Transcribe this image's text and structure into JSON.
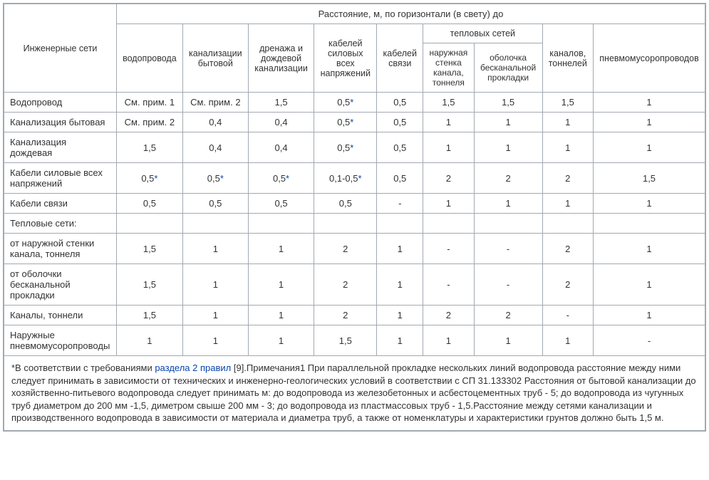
{
  "table": {
    "type": "table",
    "border_color": "#a2a9b1",
    "background_color": "#ffffff",
    "link_color": "#0645ad",
    "text_color": "#333333",
    "font_size": 13,
    "header": {
      "row_label_top": "Инженерные сети",
      "group_title": "Расстояние, м, по горизонтали (в свету) до",
      "cols": [
        "водопровода",
        "канализации бытовой",
        "дренажа и дождевой канализации",
        "кабелей силовых всех напряжений",
        "кабелей связи"
      ],
      "heat_group": "тепловых сетей",
      "heat_sub": [
        "наружная стенка канала, тоннеля",
        "оболочка бесканальной прокладки"
      ],
      "col_channels": "каналов, тоннелей",
      "col_pneumo": "пневмомусоропроводов"
    },
    "rows": [
      {
        "label": "Водопровод",
        "cells": [
          {
            "t": "См. прим. 1"
          },
          {
            "t": "См. прим. 2"
          },
          {
            "t": "1,5"
          },
          {
            "t": "0,5",
            "star": true
          },
          {
            "t": "0,5"
          },
          {
            "t": "1,5"
          },
          {
            "t": "1,5"
          },
          {
            "t": "1,5"
          },
          {
            "t": "1"
          }
        ]
      },
      {
        "label": "Канализация бытовая",
        "cells": [
          {
            "t": "См. прим. 2"
          },
          {
            "t": "0,4"
          },
          {
            "t": "0,4"
          },
          {
            "t": "0,5",
            "star": true
          },
          {
            "t": "0,5"
          },
          {
            "t": "1"
          },
          {
            "t": "1"
          },
          {
            "t": "1"
          },
          {
            "t": "1"
          }
        ]
      },
      {
        "label": "Канализация дождевая",
        "cells": [
          {
            "t": "1,5"
          },
          {
            "t": "0,4"
          },
          {
            "t": "0,4"
          },
          {
            "t": "0,5",
            "star": true
          },
          {
            "t": "0,5"
          },
          {
            "t": "1"
          },
          {
            "t": "1"
          },
          {
            "t": "1"
          },
          {
            "t": "1"
          }
        ]
      },
      {
        "label": "Кабели силовые всех напряжений",
        "cells": [
          {
            "t": "0,5",
            "star": true
          },
          {
            "t": "0,5",
            "star": true
          },
          {
            "t": "0,5",
            "star": true
          },
          {
            "t": "0,1-0,5",
            "star": true
          },
          {
            "t": "0,5"
          },
          {
            "t": "2"
          },
          {
            "t": "2"
          },
          {
            "t": "2"
          },
          {
            "t": "1,5"
          }
        ]
      },
      {
        "label": "Кабели связи",
        "cells": [
          {
            "t": "0,5"
          },
          {
            "t": "0,5"
          },
          {
            "t": "0,5"
          },
          {
            "t": "0,5"
          },
          {
            "t": "-"
          },
          {
            "t": "1"
          },
          {
            "t": "1"
          },
          {
            "t": "1"
          },
          {
            "t": "1"
          }
        ]
      },
      {
        "label": "Тепловые сети:",
        "cells": [
          {
            "t": ""
          },
          {
            "t": ""
          },
          {
            "t": ""
          },
          {
            "t": ""
          },
          {
            "t": ""
          },
          {
            "t": ""
          },
          {
            "t": ""
          },
          {
            "t": ""
          },
          {
            "t": ""
          }
        ]
      },
      {
        "label": "от наружной стенки канала, тоннеля",
        "cells": [
          {
            "t": "1,5"
          },
          {
            "t": "1"
          },
          {
            "t": "1"
          },
          {
            "t": "2"
          },
          {
            "t": "1"
          },
          {
            "t": "-"
          },
          {
            "t": "-"
          },
          {
            "t": "2"
          },
          {
            "t": "1"
          }
        ]
      },
      {
        "label": "от оболочки бесканальной прокладки",
        "cells": [
          {
            "t": "1,5"
          },
          {
            "t": "1"
          },
          {
            "t": "1"
          },
          {
            "t": "2"
          },
          {
            "t": "1"
          },
          {
            "t": "-"
          },
          {
            "t": "-"
          },
          {
            "t": "2"
          },
          {
            "t": "1"
          }
        ]
      },
      {
        "label": "Каналы, тоннели",
        "cells": [
          {
            "t": "1,5"
          },
          {
            "t": "1"
          },
          {
            "t": "1"
          },
          {
            "t": "2"
          },
          {
            "t": "1"
          },
          {
            "t": "2"
          },
          {
            "t": "2"
          },
          {
            "t": "-"
          },
          {
            "t": "1"
          }
        ]
      },
      {
        "label": "Наружные пневмомусоропроводы",
        "cells": [
          {
            "t": "1"
          },
          {
            "t": "1"
          },
          {
            "t": "1"
          },
          {
            "t": "1,5"
          },
          {
            "t": "1"
          },
          {
            "t": "1"
          },
          {
            "t": "1"
          },
          {
            "t": "1"
          },
          {
            "t": "-"
          }
        ]
      }
    ],
    "footnote": {
      "prefix": "*В соответствии с требованиями ",
      "link_text": "раздела 2 правил",
      "body": " [9].Примечания1 При параллельной прокладке нескольких линий водопровода расстояние между ними следует принимать в зависимости от технических и инженерно-геологических условий в соответствии с СП 31.133302 Расстояния от бытовой канализации до хозяйственно-питьевого водопровода следует принимать м: до водопровода из железобетонных и асбестоцементных труб - 5; до водопровода из чугунных труб диаметром до 200 мм -1,5, диметром свыше 200 мм - 3; до водопровода из пластмассовых труб - 1,5.Расстояние между сетями канализации и производственного водопровода в зависимости от материала и диаметра труб, а также от номенклатуры и характеристики грунтов должно быть 1,5 м."
    }
  }
}
